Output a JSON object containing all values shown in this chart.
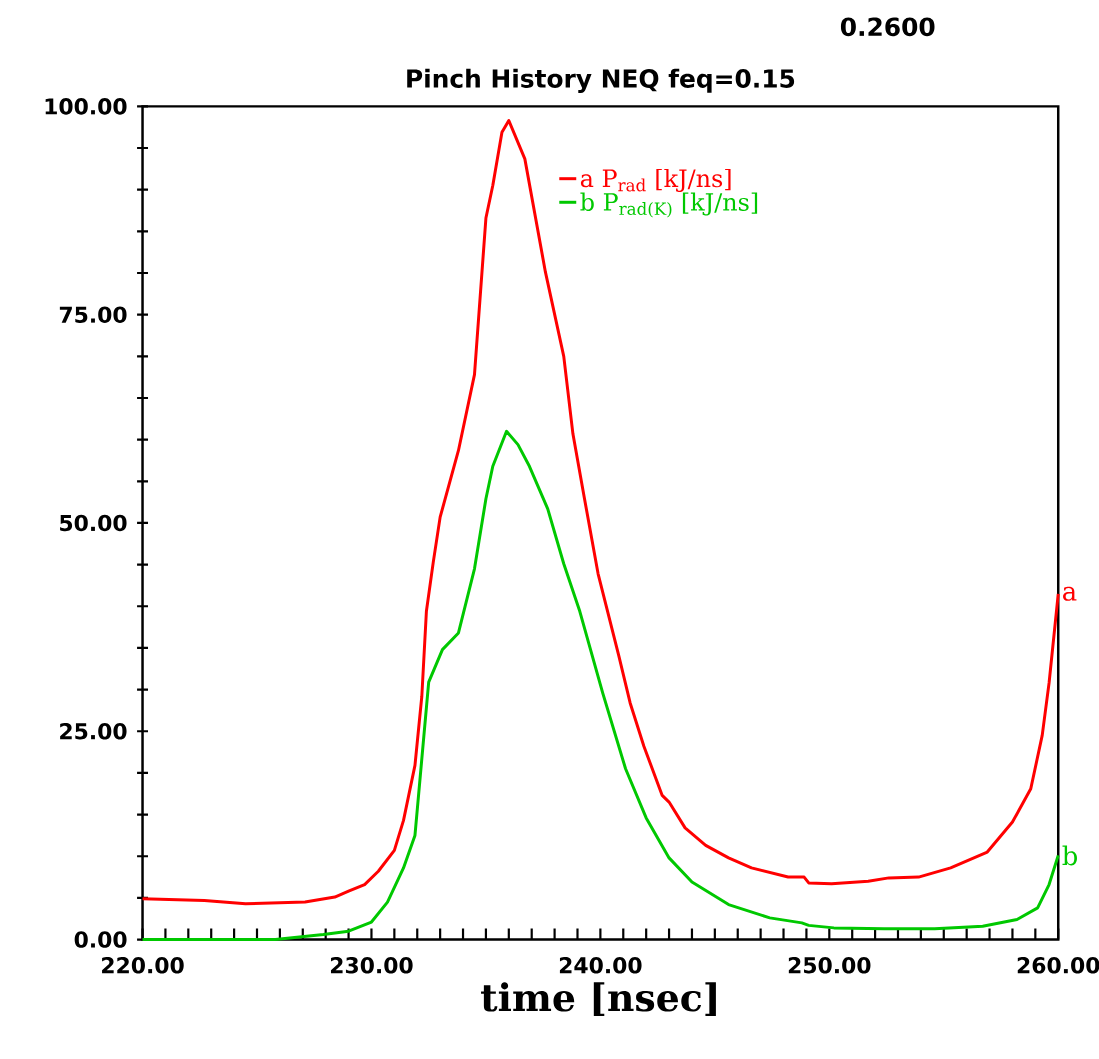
{
  "chart_data": {
    "type": "line",
    "title": "Pinch History NEQ feq=0.15",
    "xlabel": "time [nsec]",
    "xlim": [
      220,
      260
    ],
    "ylim": [
      0,
      100
    ],
    "xticks": [
      {
        "value": 220,
        "label": "220.00"
      },
      {
        "value": 230,
        "label": "230.00"
      },
      {
        "value": 240,
        "label": "240.00"
      },
      {
        "value": 250,
        "label": "250.00"
      },
      {
        "value": 260,
        "label": "260.00"
      }
    ],
    "yticks": [
      {
        "value": 0,
        "label": "0.00"
      },
      {
        "value": 25,
        "label": "25.00"
      },
      {
        "value": 50,
        "label": "50.00"
      },
      {
        "value": 75,
        "label": "75.00"
      },
      {
        "value": 100,
        "label": "100.00"
      }
    ],
    "legend": "top",
    "annotations": [
      "0.2600",
      {
        "text": "a",
        "x": 260,
        "y": 41.5
      },
      {
        "text": "b",
        "x": 260,
        "y": 10.1
      }
    ],
    "series": [
      {
        "name": "a   P$_{rad}$      [kJ/ns]",
        "color": "#ff0000",
        "x": [
          220,
          222.7,
          224.5,
          227.1,
          228.4,
          229.0,
          229.7,
          230.3,
          231.0,
          231.4,
          231.9,
          232.2,
          232.4,
          232.7,
          233.0,
          233.8,
          234.5,
          235.0,
          235.3,
          235.7,
          236.0,
          236.7,
          237.6,
          238.4,
          238.8,
          239.3,
          239.9,
          240.8,
          241.3,
          241.9,
          242.7,
          243.0,
          243.7,
          244.6,
          245.6,
          246.6,
          248.2,
          248.9,
          249.1,
          250.1,
          251.7,
          252.6,
          253.9,
          255.3,
          256.9,
          258.0,
          258.8,
          259.3,
          259.6,
          260.0
        ],
        "values": [
          4.9,
          4.7,
          4.3,
          4.5,
          5.1,
          5.8,
          6.6,
          8.2,
          10.7,
          14.3,
          20.9,
          29.2,
          39.4,
          45.3,
          50.7,
          58.7,
          67.8,
          86.6,
          90.5,
          96.9,
          98.3,
          93.7,
          80.1,
          70.0,
          60.7,
          53.0,
          43.9,
          34.1,
          28.4,
          23.2,
          17.3,
          16.5,
          13.4,
          11.3,
          9.8,
          8.6,
          7.5,
          7.5,
          6.8,
          6.7,
          7.0,
          7.4,
          7.5,
          8.6,
          10.5,
          14.1,
          18.1,
          24.5,
          30.8,
          41.5
        ]
      },
      {
        "name": "b   P$_{rad(K)}$  [kJ/ns]",
        "color": "#00c800",
        "x": [
          220,
          225.8,
          227.9,
          229.0,
          230.0,
          230.7,
          231.4,
          231.9,
          232.5,
          233.1,
          233.8,
          234.5,
          235.0,
          235.3,
          235.9,
          236.4,
          236.9,
          237.7,
          238.4,
          239.1,
          240.1,
          241.1,
          242.0,
          243.0,
          244.0,
          245.6,
          247.4,
          248.8,
          249.1,
          250.2,
          252.4,
          254.6,
          256.7,
          258.2,
          259.1,
          259.6,
          260.0
        ],
        "values": [
          0,
          0,
          0.6,
          1.0,
          2.1,
          4.5,
          8.6,
          12.5,
          30.9,
          34.8,
          36.8,
          44.5,
          52.9,
          56.8,
          61.0,
          59.4,
          56.8,
          51.7,
          45.1,
          39.4,
          29.6,
          20.5,
          14.6,
          9.8,
          6.9,
          4.2,
          2.6,
          2.0,
          1.7,
          1.4,
          1.3,
          1.3,
          1.6,
          2.4,
          3.8,
          6.6,
          10.1
        ]
      }
    ]
  }
}
